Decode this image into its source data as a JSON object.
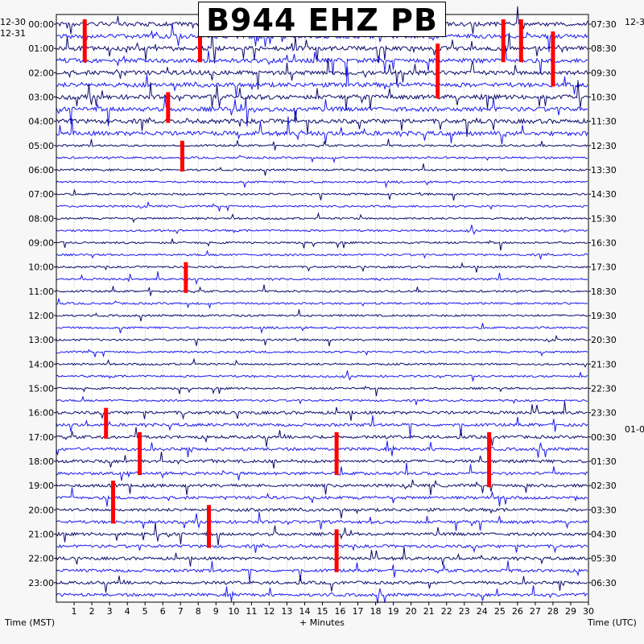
{
  "chart_data": {
    "type": "helicorder",
    "title": "B944 EHZ PB",
    "left_axis_label": "Time (MST)",
    "right_axis_label": "Time (UTC)",
    "x_axis_label": "+ Minutes",
    "left_dates": [
      "12-30",
      "12-31"
    ],
    "right_dates": [
      "12-3",
      "01-0"
    ],
    "left_times": [
      "00:00",
      "01:00",
      "02:00",
      "03:00",
      "04:00",
      "05:00",
      "06:00",
      "07:00",
      "08:00",
      "09:00",
      "10:00",
      "11:00",
      "12:00",
      "13:00",
      "14:00",
      "15:00",
      "16:00",
      "17:00",
      "18:00",
      "19:00",
      "20:00",
      "21:00",
      "22:00",
      "23:00"
    ],
    "right_times": [
      "07:30",
      "08:30",
      "09:30",
      "10:30",
      "11:30",
      "12:30",
      "13:30",
      "14:30",
      "15:30",
      "16:30",
      "17:30",
      "18:30",
      "19:30",
      "20:30",
      "21:30",
      "22:30",
      "23:30",
      "00:30",
      "01:30",
      "02:30",
      "03:30",
      "04:30",
      "05:30",
      "06:30"
    ],
    "x_ticks": [
      "1",
      "2",
      "3",
      "4",
      "5",
      "6",
      "7",
      "8",
      "9",
      "10",
      "11",
      "12",
      "13",
      "14",
      "15",
      "16",
      "17",
      "18",
      "19",
      "20",
      "21",
      "22",
      "23",
      "24",
      "25",
      "26",
      "27",
      "28",
      "29",
      "30"
    ],
    "x_range": [
      0,
      30
    ],
    "traces_per_hour": 2,
    "minutes_per_trace": 30,
    "colors": {
      "trace_dark": "#0b0b6e",
      "trace_blue": "#1a1aee",
      "clipped": "#ff0000",
      "grid": "#9a9a9a",
      "background": "#ffffff"
    },
    "clipped_events": [
      {
        "trace": 0,
        "minute": 1.6,
        "span": 3
      },
      {
        "trace": 0,
        "minute": 25.2,
        "span": 3
      },
      {
        "trace": 0,
        "minute": 26.2,
        "span": 3
      },
      {
        "trace": 1,
        "minute": 8.1,
        "span": 2
      },
      {
        "trace": 2,
        "minute": 21.5,
        "span": 4
      },
      {
        "trace": 1,
        "minute": 28.0,
        "span": 4
      },
      {
        "trace": 6,
        "minute": 6.3,
        "span": 2
      },
      {
        "trace": 10,
        "minute": 7.1,
        "span": 2
      },
      {
        "trace": 20,
        "minute": 7.3,
        "span": 2
      },
      {
        "trace": 32,
        "minute": 2.8,
        "span": 2
      },
      {
        "trace": 34,
        "minute": 4.7,
        "span": 3
      },
      {
        "trace": 34,
        "minute": 15.8,
        "span": 3
      },
      {
        "trace": 34,
        "minute": 24.4,
        "span": 4
      },
      {
        "trace": 38,
        "minute": 3.2,
        "span": 3
      },
      {
        "trace": 40,
        "minute": 8.6,
        "span": 3
      },
      {
        "trace": 42,
        "minute": 15.8,
        "span": 3
      }
    ]
  }
}
